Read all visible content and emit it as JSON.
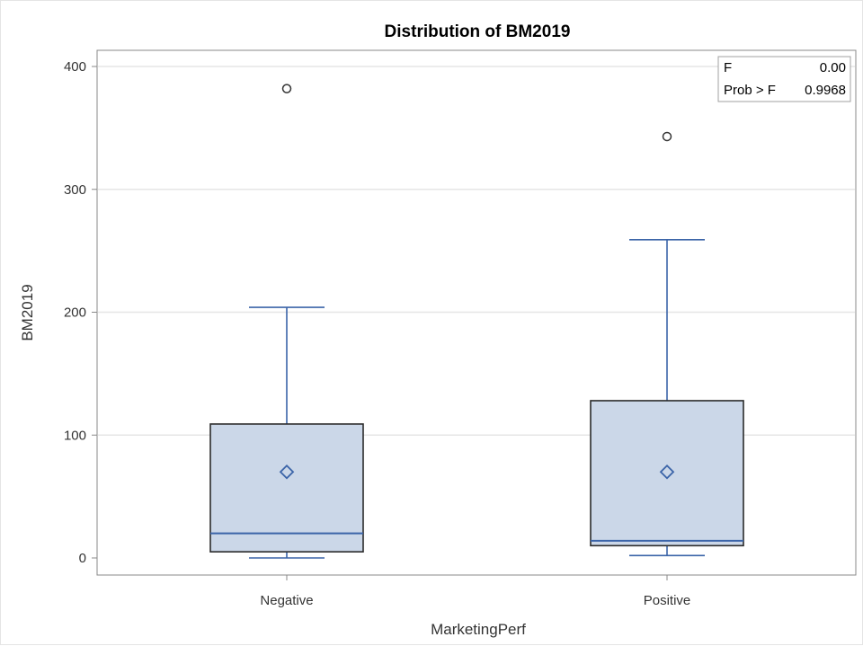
{
  "chart_data": {
    "type": "box",
    "title": "Distribution of BM2019",
    "xlabel": "MarketingPerf",
    "ylabel": "BM2019",
    "ylim": [
      0,
      400
    ],
    "yticks": [
      0,
      100,
      200,
      300,
      400
    ],
    "ytick_labels": [
      "0",
      "100",
      "200",
      "300",
      "400"
    ],
    "categories": [
      "Negative",
      "Positive"
    ],
    "grid": true,
    "boxes": [
      {
        "category": "Negative",
        "min": 0,
        "q1": 5,
        "median": 20,
        "q3": 109,
        "max": 204,
        "mean": 70,
        "outliers": [
          382
        ]
      },
      {
        "category": "Positive",
        "min": 2,
        "q1": 10,
        "median": 14,
        "q3": 128,
        "max": 259,
        "mean": 70,
        "outliers": [
          343
        ]
      }
    ],
    "inset": {
      "placement": "top-right",
      "rows": [
        {
          "label": "F",
          "value": "0.00"
        },
        {
          "label": "Prob > F",
          "value": "0.9968"
        }
      ]
    }
  },
  "colors": {
    "box_fill": "#cbd7e8",
    "box_edge": "#2b2b2b",
    "whisker": "#3b64a8",
    "median": "#3b64a8",
    "mean_marker": "#3b64a8",
    "outlier": "#333333",
    "grid": "#e6e6e6",
    "axis": "#888888"
  }
}
